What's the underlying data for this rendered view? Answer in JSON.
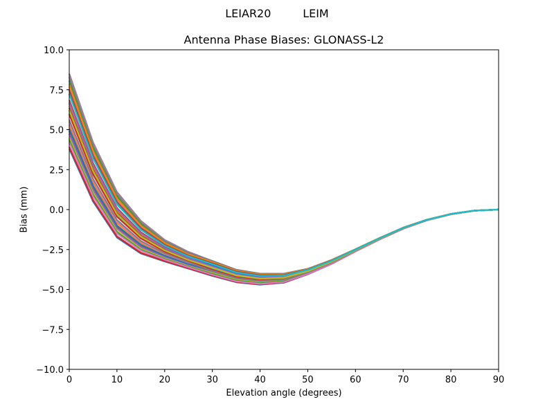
{
  "figure": {
    "suptitle": "LEIAR20         LEIM",
    "title": "Antenna Phase Biases: GLONASS-L2",
    "xlabel": "Elevation angle (degrees)",
    "ylabel": "Bias (mm)"
  },
  "chart_data": {
    "type": "line",
    "title": "Antenna Phase Biases: GLONASS-L2",
    "suptitle": "LEIAR20         LEIM",
    "xlabel": "Elevation angle (degrees)",
    "ylabel": "Bias (mm)",
    "xlim": [
      0,
      90
    ],
    "ylim": [
      -10,
      10
    ],
    "xticks": [
      0,
      10,
      20,
      30,
      40,
      50,
      60,
      70,
      80,
      90
    ],
    "xtick_labels": [
      "0",
      "10",
      "20",
      "30",
      "40",
      "50",
      "60",
      "70",
      "80",
      "90"
    ],
    "yticks": [
      10,
      7.5,
      5,
      2.5,
      0,
      -2.5,
      -5,
      -7.5,
      -10
    ],
    "ytick_labels": [
      "10.0",
      "7.5",
      "5.0",
      "2.5",
      "0.0",
      "−2.5",
      "−5.0",
      "−7.5",
      "−10.0"
    ],
    "grid": false,
    "legend": "none",
    "x": [
      0,
      5,
      10,
      15,
      20,
      25,
      30,
      35,
      40,
      45,
      50,
      55,
      60,
      65,
      70,
      75,
      80,
      85,
      90
    ],
    "envelope": {
      "upper": [
        8.5,
        4.2,
        1.1,
        -0.7,
        -1.9,
        -2.65,
        -3.2,
        -3.75,
        -4.0,
        -4.0,
        -3.7,
        -3.15,
        -2.48,
        -1.78,
        -1.13,
        -0.63,
        -0.27,
        -0.06,
        0.0
      ],
      "lower": [
        3.8,
        0.5,
        -1.75,
        -2.75,
        -3.25,
        -3.7,
        -4.15,
        -4.55,
        -4.7,
        -4.58,
        -4.05,
        -3.4,
        -2.62,
        -1.88,
        -1.2,
        -0.67,
        -0.3,
        -0.07,
        0.0
      ]
    },
    "series_count": 30,
    "series_note": "Approximately 30 overlapping curves (one per GLONASS frequency channel / azimuth) spread between the lower and upper envelopes, converging near 0 at 90 degrees",
    "colors": [
      "#1f77b4",
      "#ff7f0e",
      "#2ca02c",
      "#d62728",
      "#9467bd",
      "#8c564b",
      "#e377c2",
      "#7f7f7f",
      "#bcbd22",
      "#17becf"
    ]
  }
}
